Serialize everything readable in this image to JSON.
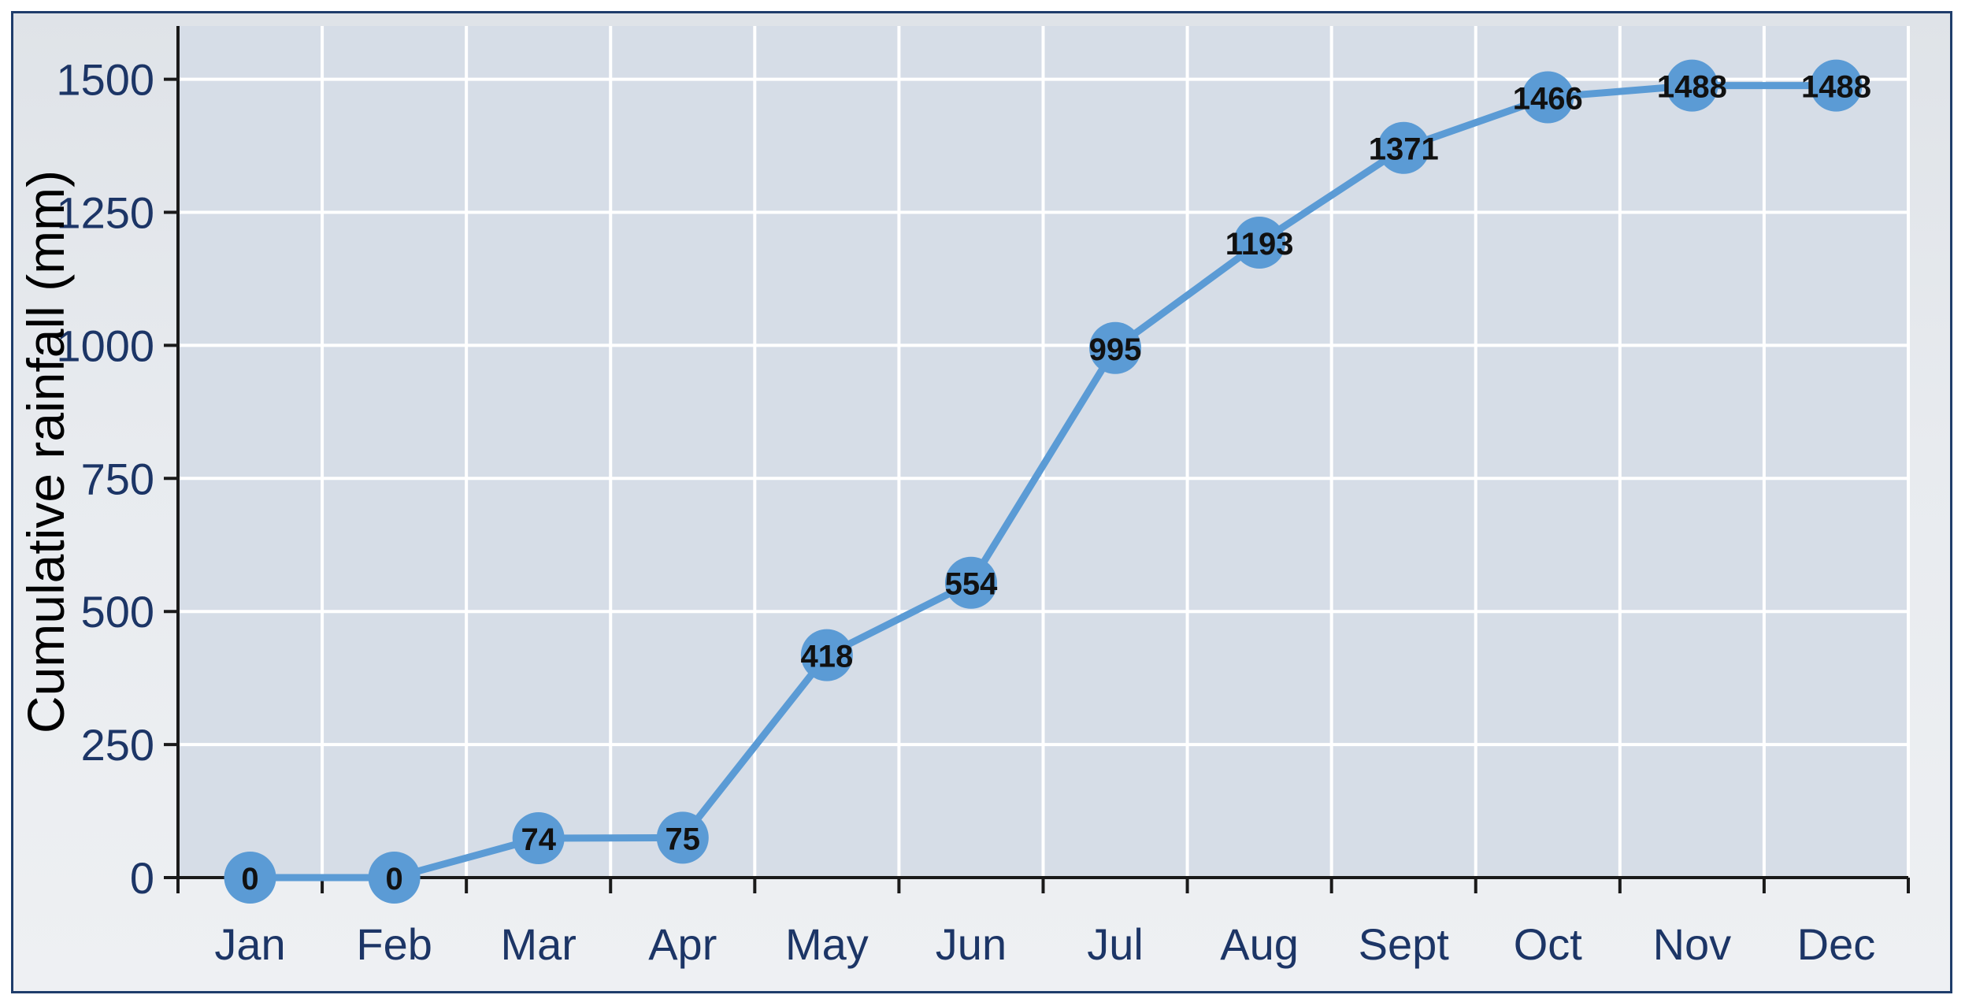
{
  "chart_data": {
    "type": "line",
    "title": "",
    "xlabel": "",
    "ylabel": "Cumulative rainfall (mm)",
    "categories": [
      "Jan",
      "Feb",
      "Mar",
      "Apr",
      "May",
      "Jun",
      "Jul",
      "Aug",
      "Sept",
      "Oct",
      "Nov",
      "Dec"
    ],
    "series": [
      {
        "values": [
          0,
          0,
          74,
          75,
          418,
          554,
          995,
          1193,
          1371,
          1466,
          1488,
          1488
        ]
      }
    ],
    "data_labels": [
      "0",
      "0",
      "74",
      "75",
      "418",
      "554",
      "995",
      "1193",
      "1371",
      "1466",
      "1488",
      "1488"
    ],
    "ylim": [
      0,
      1600
    ],
    "yticks": [
      0,
      250,
      500,
      750,
      1000,
      1250,
      1500
    ],
    "ytick_labels": [
      "0",
      "250",
      "500",
      "750",
      "1000",
      "1250",
      "1500"
    ],
    "grid": true,
    "legend": "none",
    "colors": {
      "line": "#5b9bd5",
      "marker": "#5b9bd5",
      "plot_background": "#d6dde7",
      "grid": "#ffffff",
      "axis_text": "#1c3566",
      "frame": "#1f3d6b"
    }
  }
}
